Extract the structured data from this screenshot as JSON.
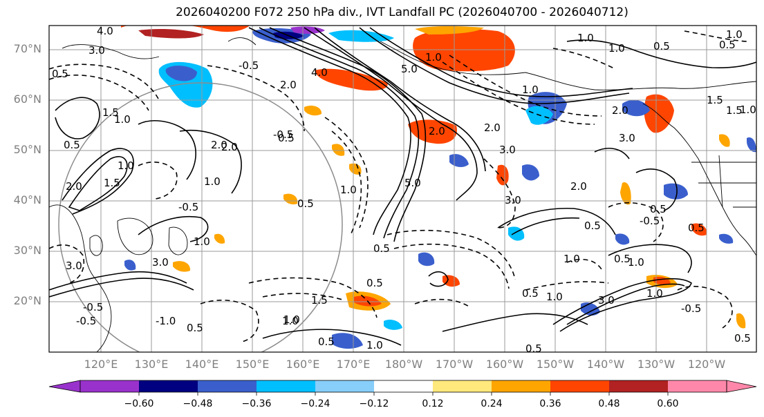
{
  "title": "2026040200 F072 250 hPa div., IVT Landfall PC (2026040700 - 2026040712)",
  "lat_labels": [
    "70°N",
    "60°N",
    "50°N",
    "40°N",
    "30°N",
    "20°N"
  ],
  "lon_labels": [
    "120°E",
    "130°E",
    "140°E",
    "150°E",
    "160°E",
    "170°E",
    "180°W",
    "170°W",
    "160°W",
    "150°W",
    "140°W",
    "130°W",
    "120°W"
  ],
  "colorbar": {
    "colors": [
      "#9932cc",
      "#000080",
      "#3a5fcd",
      "#00bfff",
      "#87cefa",
      "#ffffff",
      "#ffe87c",
      "#ffa500",
      "#ff4500",
      "#b22222",
      "#ff88aa"
    ],
    "tick_labels": [
      "−0.60",
      "−0.48",
      "−0.36",
      "−0.24",
      "−0.12",
      "0.12",
      "0.24",
      "0.36",
      "0.48",
      "0.60"
    ]
  },
  "contour_labels": [
    "4.0",
    "3.0",
    "0.5",
    "1.0",
    "2.0",
    "0.5",
    "3.0",
    "1.0",
    "4.0",
    "2.0",
    "1.5",
    "-0.5",
    "5.0",
    "1.0",
    "2.0",
    "-0.5",
    "-0.5",
    "0.5",
    "1.0",
    "0.5",
    "1.0",
    "1.5",
    "-1.0",
    "2.0",
    "1.0",
    "3.0",
    "2.0",
    "0.5",
    "1.0",
    "3.0",
    "1.0",
    "0.5",
    "-0.5",
    "0.5",
    "-0.5",
    "1.5",
    "1.0",
    "0.5",
    "0.5",
    "0.5",
    "3.0",
    "1.0",
    "0.5",
    "0.5",
    "0.5",
    "1.0",
    "3.0",
    "1.0",
    "1.0",
    "-0.5",
    "0.5",
    "-0.5",
    "0.5",
    "1.5",
    "1.0",
    "2.0",
    "3.0",
    "2.0",
    "1.5",
    "1.0",
    "0.5",
    "2.0",
    "1.0",
    "0.5",
    "1.0",
    "5.0",
    "1.0"
  ]
}
